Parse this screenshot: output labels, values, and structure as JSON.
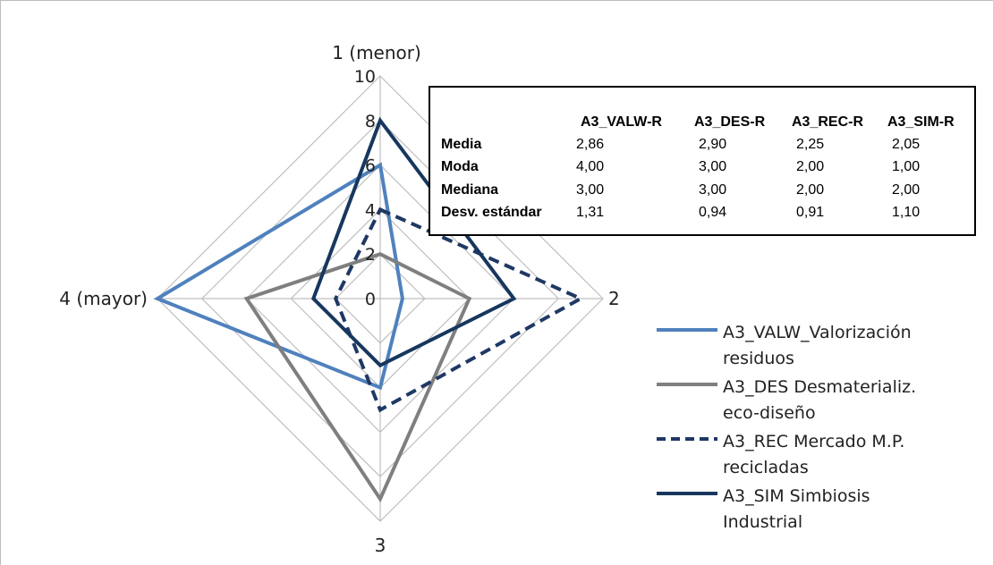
{
  "chart_data": {
    "type": "radar",
    "axes": [
      "1 (menor)",
      "2",
      "3",
      "4 (mayor)"
    ],
    "rlim": [
      0,
      10
    ],
    "r_ticks": [
      "0",
      "2",
      "4",
      "6",
      "8",
      "10"
    ],
    "grid": true,
    "legend_position": "bottom-right",
    "series": [
      {
        "name": "A3_VALW_Valorización residuos",
        "values": [
          6,
          1,
          4,
          10
        ],
        "color": "#4f81bd",
        "dash": "solid"
      },
      {
        "name": "A3_DES Desmaterializ. eco-diseño",
        "values": [
          2,
          4,
          9,
          6
        ],
        "color": "#7f7f7f",
        "dash": "solid"
      },
      {
        "name": "A3_REC Mercado M.P. recicladas",
        "values": [
          4,
          9,
          5,
          2
        ],
        "color": "#1f3864",
        "dash": "dashed"
      },
      {
        "name": "A3_SIM Simbiosis Industrial",
        "values": [
          8,
          6,
          3,
          3
        ],
        "color": "#17375e",
        "dash": "solid"
      }
    ]
  },
  "stats_table": {
    "columns": [
      "A3_VALW-R",
      "A3_DES-R",
      "A3_REC-R",
      "A3_SIM-R"
    ],
    "rows": [
      {
        "label": "Media",
        "values": [
          "2,86",
          "2,90",
          "2,25",
          "2,05"
        ]
      },
      {
        "label": "Moda",
        "values": [
          "4,00",
          "3,00",
          "2,00",
          "1,00"
        ]
      },
      {
        "label": "Mediana",
        "values": [
          "3,00",
          "3,00",
          "2,00",
          "2,00"
        ]
      },
      {
        "label": "Desv. estándar",
        "values": [
          "1,31",
          "0,94",
          "0,91",
          "1,10"
        ]
      }
    ]
  },
  "legend": {
    "items": [
      {
        "line1": "A3_VALW_Valorización",
        "line2": "residuos"
      },
      {
        "line1": "A3_DES Desmaterializ.",
        "line2": "eco-diseño"
      },
      {
        "line1": "A3_REC Mercado M.P.",
        "line2": "recicladas"
      },
      {
        "line1": "A3_SIM Simbiosis",
        "line2": "Industrial"
      }
    ]
  }
}
